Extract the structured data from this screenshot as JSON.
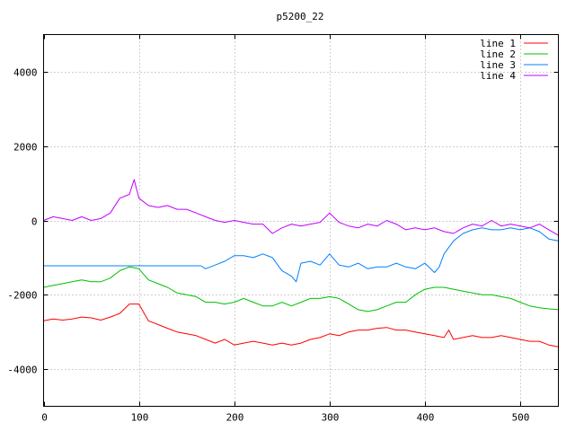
{
  "chart_data": {
    "type": "line",
    "title": "p5200_22",
    "xlabel": "",
    "ylabel": "",
    "xlim": [
      0,
      540
    ],
    "ylim": [
      -5000,
      5000
    ],
    "xticks": [
      0,
      100,
      200,
      300,
      400,
      500
    ],
    "yticks": [
      -4000,
      -2000,
      0,
      2000,
      4000
    ],
    "xtick_labels": [
      "0",
      "100",
      "200",
      "300",
      "400",
      "500"
    ],
    "ytick_labels": [
      "-4000",
      "-2000",
      "0",
      "2000",
      "4000"
    ],
    "grid": true,
    "legend_position": "top-right",
    "series": [
      {
        "name": "line 1",
        "color": "#ff0000",
        "x": [
          0,
          10,
          20,
          30,
          40,
          50,
          60,
          70,
          80,
          90,
          100,
          110,
          120,
          130,
          140,
          150,
          160,
          170,
          180,
          190,
          200,
          210,
          220,
          230,
          240,
          250,
          260,
          270,
          280,
          290,
          300,
          310,
          320,
          330,
          340,
          350,
          360,
          370,
          380,
          390,
          400,
          410,
          420,
          425,
          430,
          440,
          450,
          460,
          470,
          480,
          490,
          500,
          510,
          520,
          530,
          540
        ],
        "y": [
          -2700,
          -2650,
          -2680,
          -2650,
          -2600,
          -2620,
          -2680,
          -2600,
          -2500,
          -2250,
          -2250,
          -2700,
          -2800,
          -2900,
          -3000,
          -3050,
          -3100,
          -3200,
          -3300,
          -3200,
          -3350,
          -3300,
          -3250,
          -3300,
          -3350,
          -3300,
          -3350,
          -3300,
          -3200,
          -3150,
          -3050,
          -3100,
          -3000,
          -2950,
          -2950,
          -2900,
          -2880,
          -2950,
          -2950,
          -3000,
          -3050,
          -3100,
          -3150,
          -2950,
          -3200,
          -3150,
          -3100,
          -3150,
          -3150,
          -3100,
          -3150,
          -3200,
          -3250,
          -3250,
          -3350,
          -3400
        ]
      },
      {
        "name": "line 2",
        "color": "#00c000",
        "x": [
          0,
          10,
          20,
          30,
          40,
          50,
          60,
          70,
          80,
          90,
          100,
          110,
          120,
          130,
          140,
          150,
          160,
          170,
          180,
          190,
          200,
          210,
          220,
          230,
          240,
          250,
          260,
          270,
          280,
          290,
          300,
          310,
          320,
          330,
          340,
          350,
          360,
          370,
          380,
          390,
          400,
          410,
          420,
          430,
          440,
          450,
          460,
          470,
          480,
          490,
          500,
          510,
          520,
          530,
          540
        ],
        "y": [
          -1800,
          -1750,
          -1700,
          -1650,
          -1600,
          -1650,
          -1650,
          -1550,
          -1350,
          -1250,
          -1300,
          -1600,
          -1700,
          -1800,
          -1950,
          -2000,
          -2050,
          -2200,
          -2200,
          -2250,
          -2200,
          -2100,
          -2200,
          -2300,
          -2300,
          -2200,
          -2300,
          -2200,
          -2100,
          -2100,
          -2050,
          -2100,
          -2250,
          -2400,
          -2450,
          -2400,
          -2300,
          -2200,
          -2200,
          -2000,
          -1850,
          -1800,
          -1800,
          -1850,
          -1900,
          -1950,
          -2000,
          -2000,
          -2050,
          -2100,
          -2200,
          -2300,
          -2350,
          -2380,
          -2400
        ]
      },
      {
        "name": "line 3",
        "color": "#0080ff",
        "x": [
          0,
          20,
          40,
          60,
          80,
          100,
          120,
          140,
          160,
          165,
          170,
          180,
          190,
          200,
          210,
          220,
          230,
          240,
          250,
          260,
          265,
          270,
          280,
          290,
          300,
          310,
          320,
          330,
          340,
          350,
          360,
          370,
          380,
          390,
          400,
          410,
          415,
          420,
          430,
          440,
          450,
          460,
          470,
          480,
          490,
          500,
          510,
          520,
          530,
          540
        ],
        "y": [
          -1220,
          -1220,
          -1220,
          -1220,
          -1220,
          -1220,
          -1220,
          -1220,
          -1220,
          -1220,
          -1300,
          -1200,
          -1100,
          -950,
          -950,
          -1000,
          -900,
          -1000,
          -1350,
          -1500,
          -1650,
          -1150,
          -1100,
          -1200,
          -900,
          -1200,
          -1250,
          -1150,
          -1300,
          -1250,
          -1250,
          -1150,
          -1250,
          -1300,
          -1150,
          -1400,
          -1250,
          -900,
          -550,
          -350,
          -250,
          -200,
          -250,
          -250,
          -200,
          -250,
          -200,
          -300,
          -500,
          -550
        ]
      },
      {
        "name": "line 4",
        "color": "#c000ff",
        "x": [
          0,
          10,
          20,
          30,
          40,
          50,
          60,
          70,
          80,
          90,
          95,
          100,
          110,
          120,
          130,
          140,
          150,
          160,
          170,
          180,
          190,
          200,
          210,
          220,
          230,
          240,
          250,
          260,
          270,
          280,
          290,
          300,
          310,
          320,
          330,
          340,
          350,
          360,
          370,
          380,
          390,
          400,
          410,
          420,
          430,
          440,
          450,
          460,
          470,
          480,
          490,
          500,
          510,
          520,
          530,
          540
        ],
        "y": [
          0,
          100,
          50,
          0,
          100,
          0,
          50,
          200,
          600,
          700,
          1100,
          600,
          400,
          350,
          400,
          300,
          300,
          200,
          100,
          0,
          -50,
          0,
          -50,
          -100,
          -100,
          -350,
          -200,
          -100,
          -150,
          -100,
          -50,
          200,
          -50,
          -150,
          -200,
          -100,
          -150,
          0,
          -100,
          -250,
          -200,
          -250,
          -200,
          -300,
          -350,
          -200,
          -100,
          -150,
          0,
          -150,
          -100,
          -150,
          -200,
          -100,
          -250,
          -400
        ]
      }
    ]
  }
}
